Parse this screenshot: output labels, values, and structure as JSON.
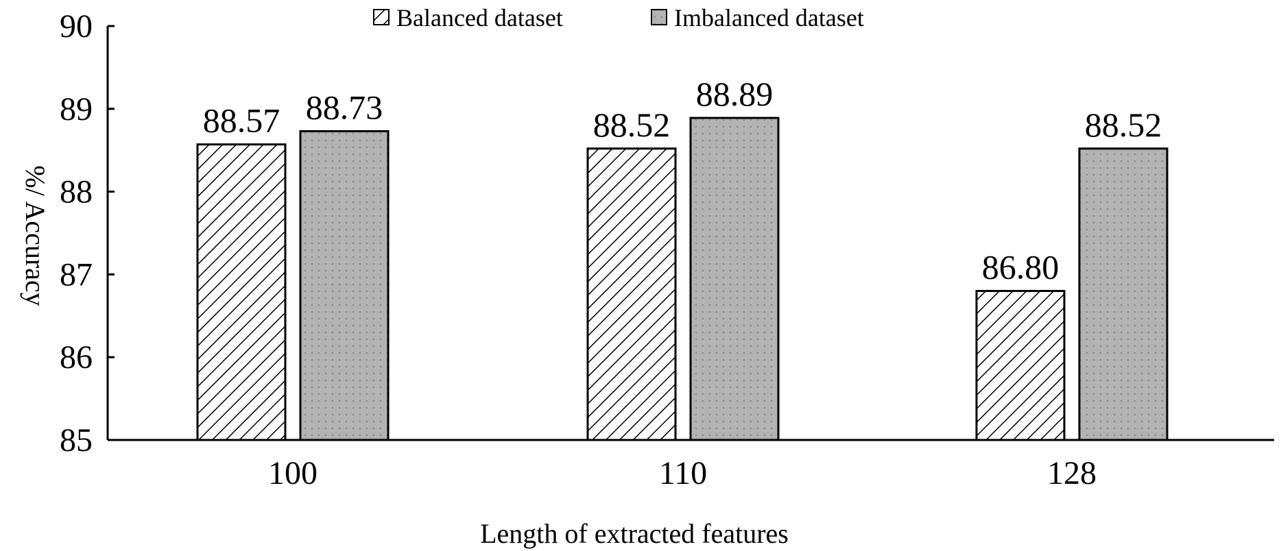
{
  "chart_data": {
    "type": "bar",
    "title": "",
    "xlabel": "Length of extracted features",
    "ylabel": "%/ Accuracy",
    "categories": [
      "100",
      "110",
      "128"
    ],
    "series": [
      {
        "name": "Balanced dataset",
        "values": [
          88.57,
          88.52,
          86.8
        ],
        "labels": [
          "88.57",
          "88.52",
          "86.80"
        ],
        "pattern": "diagonal-hatch",
        "color": "#ffffff"
      },
      {
        "name": "Imbalanced dataset",
        "values": [
          88.73,
          88.89,
          88.52
        ],
        "labels": [
          "88.73",
          "88.89",
          "88.52"
        ],
        "pattern": "dotted-gray",
        "color": "#b3b3b3"
      }
    ],
    "ylim": [
      85,
      90
    ],
    "yticks": [
      "85",
      "86",
      "87",
      "88",
      "89",
      "90"
    ],
    "grid": false,
    "legend_position": "top-center"
  }
}
